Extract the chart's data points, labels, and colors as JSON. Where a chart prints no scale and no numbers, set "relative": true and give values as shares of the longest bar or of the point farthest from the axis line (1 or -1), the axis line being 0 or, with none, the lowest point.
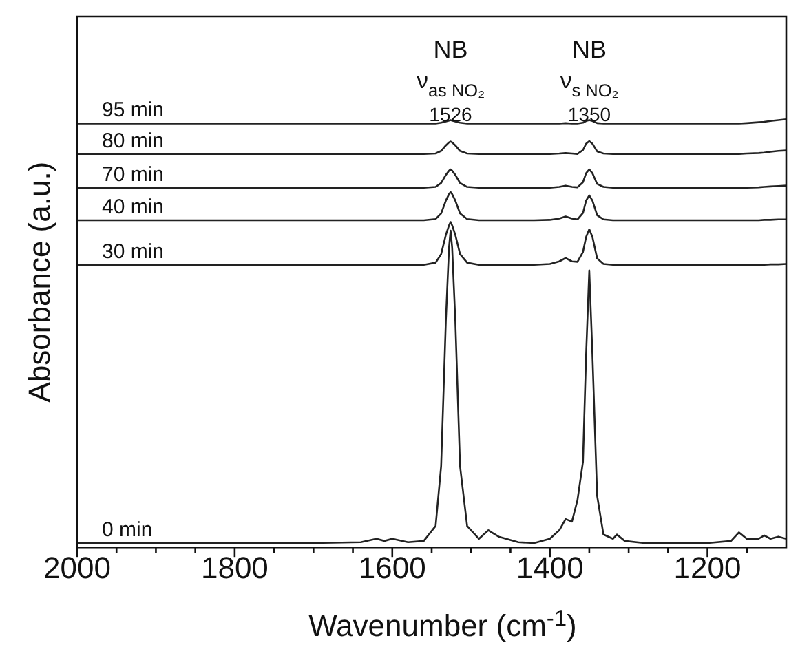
{
  "chart_data": {
    "type": "line",
    "relative": true,
    "xlabel": "Wavenumber (cm$^{-1}$)",
    "ylabel": "Absorbance (a.u.)",
    "xlim": [
      2000,
      1100
    ],
    "xticks": [
      2000,
      {
        "value": 1950,
        "label": null
      },
      {
        "value": 1900,
        "label": null
      },
      {
        "value": 1850,
        "label": null
      },
      1800,
      {
        "value": 1750,
        "label": null
      },
      {
        "value": 1700,
        "label": null
      },
      {
        "value": 1650,
        "label": null
      },
      1600,
      {
        "value": 1550,
        "label": null
      },
      {
        "value": 1500,
        "label": null
      },
      {
        "value": 1450,
        "label": null
      },
      1400,
      {
        "value": 1350,
        "label": null
      },
      {
        "value": 1300,
        "label": null
      },
      {
        "value": 1250,
        "label": null
      },
      1200,
      {
        "value": 1150,
        "label": null
      }
    ],
    "x": [
      2000,
      1900,
      1800,
      1700,
      1640,
      1620,
      1610,
      1600,
      1580,
      1560,
      1545,
      1538,
      1532,
      1528,
      1526,
      1524,
      1520,
      1514,
      1505,
      1490,
      1478,
      1474,
      1465,
      1440,
      1420,
      1400,
      1388,
      1380,
      1372,
      1365,
      1358,
      1354,
      1350,
      1346,
      1340,
      1332,
      1320,
      1315,
      1305,
      1280,
      1250,
      1200,
      1170,
      1160,
      1150,
      1135,
      1128,
      1120,
      1110,
      1100
    ],
    "legend": false,
    "grid": false,
    "marker": "none",
    "line_style": "solid",
    "series": [
      {
        "name": "0 min",
        "color": "#222222",
        "values": [
          0.01,
          0.01,
          0.01,
          0.01,
          0.012,
          0.02,
          0.015,
          0.02,
          0.012,
          0.015,
          0.05,
          0.19,
          0.53,
          0.7,
          0.74,
          0.7,
          0.53,
          0.19,
          0.05,
          0.02,
          0.04,
          0.035,
          0.025,
          0.012,
          0.01,
          0.02,
          0.04,
          0.066,
          0.06,
          0.11,
          0.2,
          0.45,
          0.647,
          0.45,
          0.12,
          0.03,
          0.02,
          0.03,
          0.015,
          0.01,
          0.01,
          0.01,
          0.015,
          0.035,
          0.02,
          0.02,
          0.028,
          0.02,
          0.025,
          0.02
        ]
      },
      {
        "name": "30 min",
        "color": "#222222",
        "values": [
          0.66,
          0.66,
          0.66,
          0.66,
          0.66,
          0.66,
          0.66,
          0.66,
          0.66,
          0.66,
          0.665,
          0.685,
          0.73,
          0.752,
          0.76,
          0.752,
          0.73,
          0.685,
          0.665,
          0.66,
          0.66,
          0.66,
          0.66,
          0.66,
          0.66,
          0.662,
          0.668,
          0.676,
          0.668,
          0.667,
          0.69,
          0.725,
          0.743,
          0.725,
          0.675,
          0.662,
          0.66,
          0.66,
          0.66,
          0.66,
          0.66,
          0.66,
          0.66,
          0.66,
          0.66,
          0.66,
          0.66,
          0.661,
          0.661,
          0.662
        ]
      },
      {
        "name": "40 min",
        "color": "#222222",
        "values": [
          0.764,
          0.764,
          0.764,
          0.764,
          0.764,
          0.764,
          0.764,
          0.764,
          0.764,
          0.764,
          0.767,
          0.78,
          0.81,
          0.825,
          0.83,
          0.825,
          0.81,
          0.78,
          0.767,
          0.764,
          0.764,
          0.764,
          0.764,
          0.764,
          0.764,
          0.765,
          0.768,
          0.773,
          0.768,
          0.766,
          0.781,
          0.81,
          0.822,
          0.81,
          0.776,
          0.766,
          0.764,
          0.764,
          0.764,
          0.764,
          0.764,
          0.764,
          0.764,
          0.764,
          0.764,
          0.764,
          0.765,
          0.765,
          0.766,
          0.766
        ]
      },
      {
        "name": "70 min",
        "color": "#222222",
        "values": [
          0.84,
          0.84,
          0.84,
          0.84,
          0.84,
          0.84,
          0.84,
          0.84,
          0.84,
          0.84,
          0.842,
          0.851,
          0.87,
          0.88,
          0.883,
          0.88,
          0.87,
          0.851,
          0.842,
          0.84,
          0.84,
          0.84,
          0.84,
          0.84,
          0.84,
          0.84,
          0.842,
          0.845,
          0.842,
          0.841,
          0.853,
          0.874,
          0.883,
          0.874,
          0.849,
          0.842,
          0.84,
          0.84,
          0.84,
          0.84,
          0.84,
          0.84,
          0.84,
          0.84,
          0.84,
          0.841,
          0.842,
          0.843,
          0.844,
          0.845
        ]
      },
      {
        "name": "80 min",
        "color": "#222222",
        "values": [
          0.919,
          0.919,
          0.919,
          0.919,
          0.919,
          0.919,
          0.919,
          0.919,
          0.919,
          0.919,
          0.92,
          0.926,
          0.939,
          0.946,
          0.948,
          0.946,
          0.939,
          0.926,
          0.92,
          0.919,
          0.919,
          0.919,
          0.919,
          0.919,
          0.919,
          0.919,
          0.92,
          0.921,
          0.92,
          0.919,
          0.928,
          0.943,
          0.949,
          0.943,
          0.925,
          0.92,
          0.919,
          0.919,
          0.919,
          0.919,
          0.919,
          0.919,
          0.919,
          0.919,
          0.92,
          0.921,
          0.922,
          0.924,
          0.926,
          0.927
        ]
      },
      {
        "name": "95 min",
        "color": "#222222",
        "values": [
          0.99,
          0.99,
          0.99,
          0.99,
          0.99,
          0.99,
          0.99,
          0.99,
          0.99,
          0.99,
          0.99,
          0.992,
          0.995,
          0.997,
          0.998,
          0.997,
          0.995,
          0.992,
          0.99,
          0.99,
          0.99,
          0.99,
          0.99,
          0.99,
          0.99,
          0.99,
          0.99,
          0.991,
          0.99,
          0.99,
          0.992,
          0.996,
          0.998,
          0.996,
          0.991,
          0.99,
          0.99,
          0.99,
          0.99,
          0.99,
          0.99,
          0.99,
          0.99,
          0.99,
          0.991,
          0.993,
          0.994,
          0.996,
          0.998,
          1
        ]
      }
    ],
    "annotations": [
      "NB",
      "ν$_{as NO₂}$",
      "1526",
      "NB",
      "ν$_{s NO₂}$",
      "1350"
    ]
  }
}
